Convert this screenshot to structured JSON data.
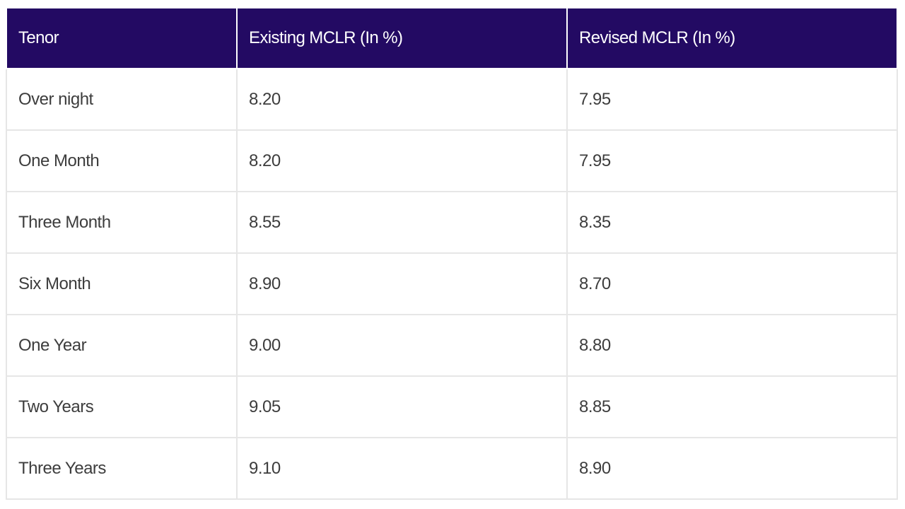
{
  "table": {
    "headers": [
      "Tenor",
      "Existing MCLR (In %)",
      "Revised MCLR (In %)"
    ],
    "rows": [
      [
        "Over night",
        "8.20",
        "7.95"
      ],
      [
        "One Month",
        "8.20",
        "7.95"
      ],
      [
        "Three Month",
        "8.55",
        "8.35"
      ],
      [
        "Six Month",
        "8.90",
        "8.70"
      ],
      [
        "One Year",
        "9.00",
        "8.80"
      ],
      [
        "Two Years",
        "9.05",
        "8.85"
      ],
      [
        "Three Years",
        "9.10",
        "8.90"
      ]
    ]
  },
  "colors": {
    "header_bg": "#230a63",
    "header_text": "#ffffff",
    "cell_text": "#3d3d3d",
    "grid": "#e6e6e6"
  }
}
